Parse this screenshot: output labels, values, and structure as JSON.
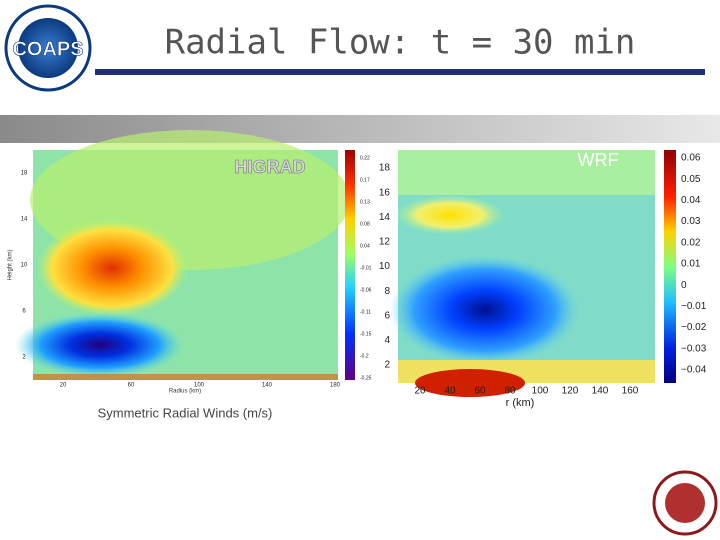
{
  "slide": {
    "logo": "COAPS",
    "title": "Radial Flow:  t = 30 min"
  },
  "left_panel": {
    "label": "HIGRAD",
    "caption": "Symmetric Radial Winds (m/s)",
    "x_label": "Radius (km)",
    "y_label": "Height (km)",
    "xticks": [
      "20",
      "60",
      "100",
      "140",
      "180"
    ],
    "yticks": [
      "18",
      "14",
      "10",
      "6",
      "2"
    ],
    "colorbar_ticks": [
      "0.22",
      "0.17",
      "0.13",
      "0.08",
      "0.04",
      "-0.01",
      "-0.06",
      "-0.11",
      "-0.15",
      "-0.2",
      "-0.25"
    ]
  },
  "right_panel": {
    "label": "WRF",
    "x_label": "r (km)",
    "xticks": [
      "20",
      "40",
      "60",
      "80",
      "100",
      "120",
      "140",
      "160"
    ],
    "yticks": [
      "18",
      "16",
      "14",
      "12",
      "10",
      "8",
      "6",
      "4",
      "2"
    ],
    "colorbar_ticks": [
      "0.06",
      "0.05",
      "0.04",
      "0.03",
      "0.02",
      "0.01",
      "0",
      "−0.01",
      "−0.02",
      "−0.03",
      "−0.04"
    ]
  }
}
